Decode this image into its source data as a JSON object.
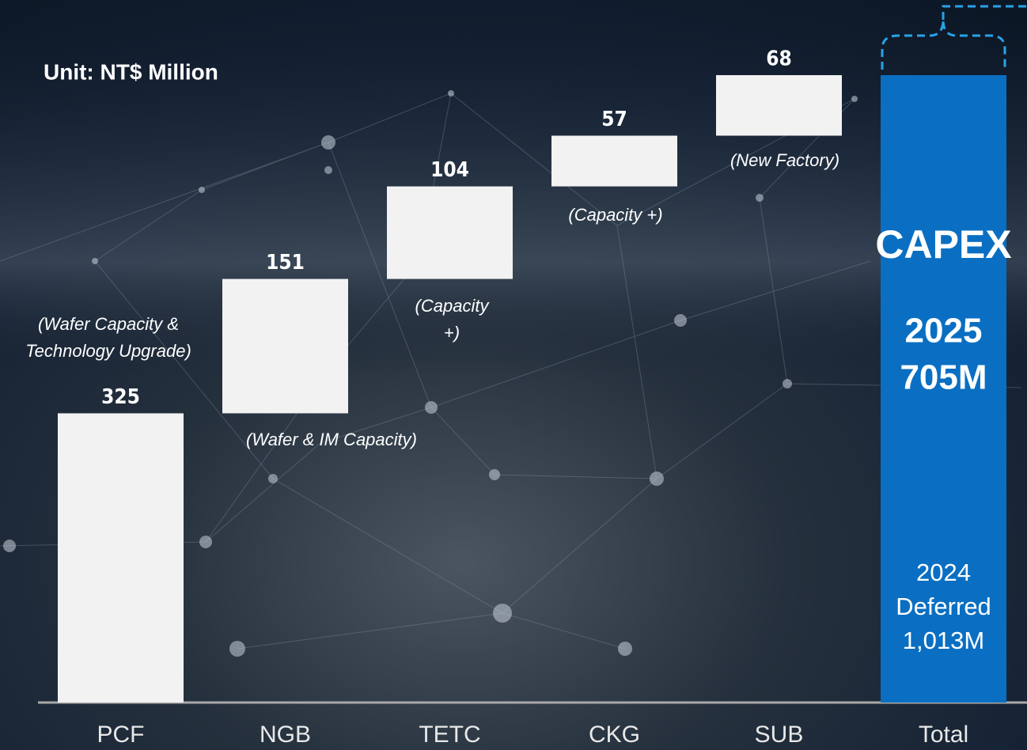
{
  "chart_data": {
    "type": "waterfall",
    "unit": "Unit: NT$ Million",
    "categories": [
      "PCF",
      "NGB",
      "TETC",
      "CKG",
      "SUB"
    ],
    "values": [
      325,
      151,
      104,
      57,
      68
    ],
    "color": "#f2f2f2",
    "notes": [
      [
        "(Wafer Capacity &",
        "Technology Upgrade)"
      ],
      [
        "(Wafer & IM Capacity)"
      ],
      [
        "(Capacity",
        "+)"
      ],
      [
        "(Capacity +)"
      ],
      [
        "(New Factory)"
      ]
    ],
    "total": {
      "category": "Total",
      "value": 705,
      "value_label": "705M",
      "color": "#0a6fc2",
      "title": "CAPEX",
      "year": "2025",
      "deferred": [
        "2024",
        "Deferred",
        "1,013M"
      ]
    }
  }
}
